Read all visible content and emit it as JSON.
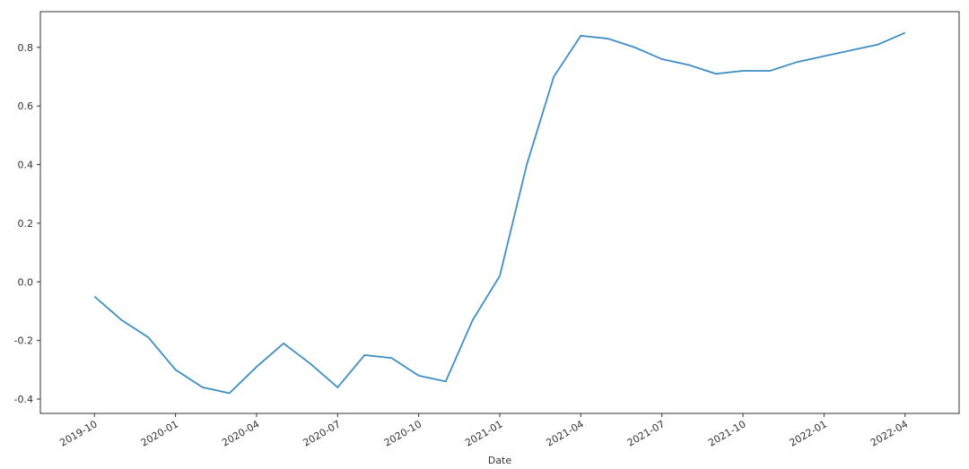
{
  "chart_data": {
    "type": "line",
    "x_label": "Date",
    "x": [
      "2019-10",
      "2019-11",
      "2019-12",
      "2020-01",
      "2020-02",
      "2020-03",
      "2020-04",
      "2020-05",
      "2020-06",
      "2020-07",
      "2020-08",
      "2020-09",
      "2020-10",
      "2020-11",
      "2020-12",
      "2021-01",
      "2021-02",
      "2021-03",
      "2021-04",
      "2021-05",
      "2021-06",
      "2021-07",
      "2021-08",
      "2021-09",
      "2021-10",
      "2021-11",
      "2021-12",
      "2022-01",
      "2022-02",
      "2022-03",
      "2022-04"
    ],
    "series": [
      {
        "color": "#3f8fc4",
        "values": [
          -0.05,
          -0.13,
          -0.19,
          -0.3,
          -0.36,
          -0.38,
          -0.29,
          -0.21,
          -0.28,
          -0.36,
          -0.25,
          -0.26,
          -0.32,
          -0.34,
          -0.13,
          0.02,
          0.4,
          0.7,
          0.84,
          0.83,
          0.8,
          0.76,
          0.74,
          0.71,
          0.72,
          0.72,
          0.75,
          0.77,
          0.79,
          0.81,
          0.85
        ]
      }
    ],
    "xlim": [
      "2019-08",
      "2022-06"
    ],
    "xticks": [
      "2019-10",
      "2020-01",
      "2020-04",
      "2020-07",
      "2020-10",
      "2021-01",
      "2021-04",
      "2021-07",
      "2021-10",
      "2022-01",
      "2022-04"
    ],
    "ylim": [
      -0.449,
      0.922
    ],
    "yticks": [
      -0.4,
      -0.2,
      {
        "value": 0,
        "label": "0.0"
      },
      0.2,
      0.4,
      0.6,
      0.8
    ]
  }
}
